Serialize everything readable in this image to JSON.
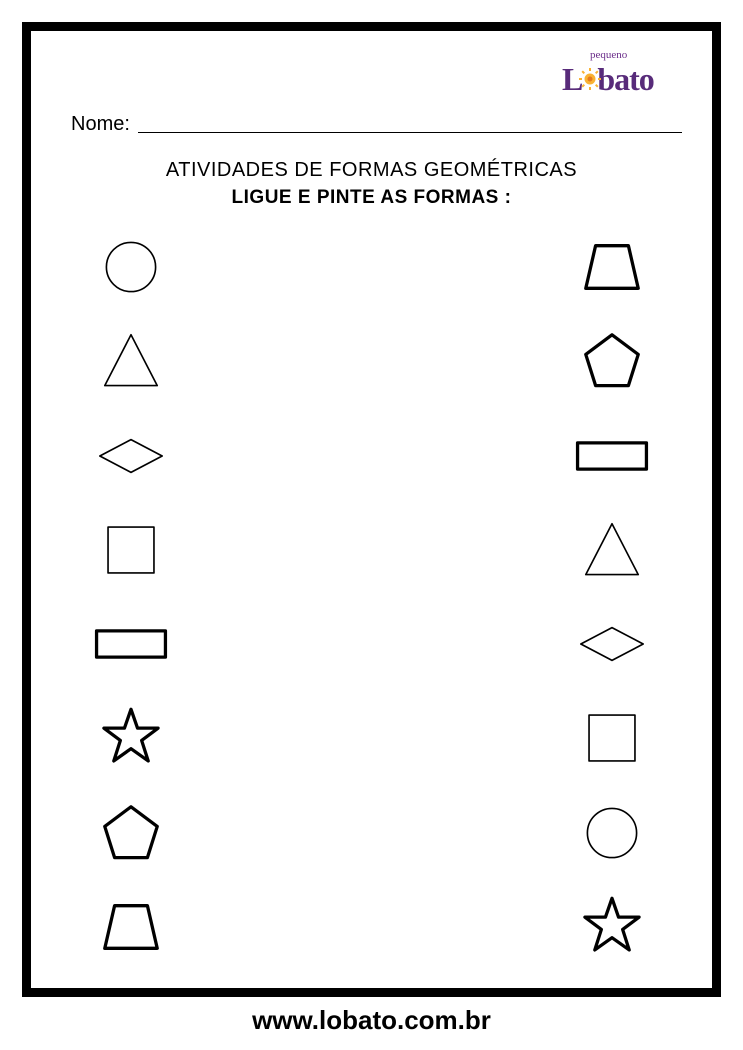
{
  "logo": {
    "small_text": "pequeno",
    "main_text_before": "L",
    "main_text_after": "bato",
    "text_color": "#582b7a",
    "sun_fill": "#f9b233",
    "sun_center": "#e6781e"
  },
  "name_label": "Nome:",
  "title_line_1": "ATIVIDADES DE FORMAS GEOMÉTRICAS",
  "title_line_2": "LIGUE E PINTE AS FORMAS :",
  "footer_url": "www.lobato.com.br",
  "colors": {
    "border": "#000000",
    "background": "#ffffff",
    "stroke_thin": "#000000",
    "stroke_thick": "#000000"
  },
  "stroke_widths": {
    "thin": 2,
    "thick": 4
  },
  "left_column": [
    {
      "type": "circle",
      "stroke": "thin"
    },
    {
      "type": "triangle",
      "stroke": "thin"
    },
    {
      "type": "diamond",
      "stroke": "thin"
    },
    {
      "type": "square",
      "stroke": "thin"
    },
    {
      "type": "rectangle",
      "stroke": "thick"
    },
    {
      "type": "star",
      "stroke": "thick"
    },
    {
      "type": "pentagon",
      "stroke": "thick"
    },
    {
      "type": "trapezoid",
      "stroke": "thick"
    }
  ],
  "right_column": [
    {
      "type": "trapezoid",
      "stroke": "thick"
    },
    {
      "type": "pentagon",
      "stroke": "thick"
    },
    {
      "type": "rectangle",
      "stroke": "thick"
    },
    {
      "type": "triangle",
      "stroke": "thin"
    },
    {
      "type": "diamond",
      "stroke": "thin"
    },
    {
      "type": "square",
      "stroke": "thin"
    },
    {
      "type": "circle",
      "stroke": "thin"
    },
    {
      "type": "star",
      "stroke": "thick"
    }
  ]
}
